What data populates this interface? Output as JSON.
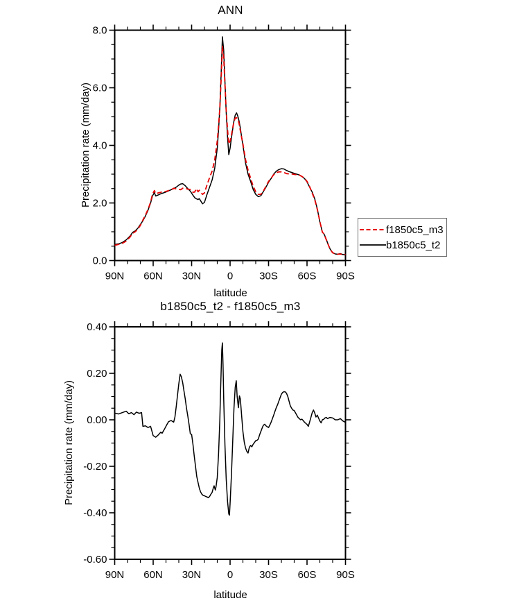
{
  "figure": {
    "background": "#ffffff",
    "frame_color": "#000000"
  },
  "legend": {
    "items": [
      {
        "label": "f1850c5_m3",
        "color": "#e60000",
        "style": "dashed"
      },
      {
        "label": "b1850c5_t2",
        "color": "#000000",
        "style": "solid"
      }
    ]
  },
  "chart_data": [
    {
      "type": "line",
      "title": "ANN",
      "xlabel": "latitude",
      "ylabel": "Precipitation rate (mm/day)",
      "xlim_lat": [
        90,
        -90
      ],
      "x_tick_lats": [
        90,
        60,
        30,
        0,
        -30,
        -60,
        -90
      ],
      "x_tick_labels": [
        "90N",
        "60N",
        "30N",
        "0",
        "30S",
        "60S",
        "90S"
      ],
      "x_minor_step_deg": 10,
      "ylim": [
        0.0,
        8.0
      ],
      "y_major_ticks": [
        0.0,
        2.0,
        4.0,
        6.0,
        8.0
      ],
      "y_tick_labels": [
        "0.0",
        "2.0",
        "4.0",
        "6.0",
        "8.0"
      ],
      "y_minor_step": 0.5,
      "grid": false,
      "legend_position": "outside-right",
      "lat": [
        90,
        87,
        84,
        81,
        78,
        76,
        74,
        72,
        70,
        68,
        66,
        64,
        62,
        60.5,
        59,
        58,
        56,
        54,
        52,
        50,
        48,
        46,
        44,
        42,
        40,
        38.5,
        37,
        35,
        33,
        31,
        29,
        27.5,
        26.5,
        25,
        24,
        23,
        21.5,
        20,
        18,
        16,
        14,
        12,
        10,
        9,
        8,
        7,
        6,
        5,
        4,
        3,
        2,
        1,
        0,
        -1,
        -2,
        -3,
        -4,
        -5,
        -6,
        -7,
        -8,
        -9,
        -10,
        -11,
        -12,
        -14,
        -16,
        -18,
        -20,
        -22,
        -24,
        -26,
        -28,
        -30,
        -32,
        -34,
        -36,
        -38,
        -40,
        -42,
        -44,
        -46,
        -48,
        -50,
        -52,
        -54,
        -56,
        -58,
        -60,
        -62,
        -64,
        -66,
        -68,
        -70,
        -72,
        -73,
        -74,
        -76,
        -78,
        -80,
        -82,
        -84,
        -86,
        -88,
        -90
      ],
      "series": [
        {
          "name": "f1850c5_m3",
          "color": "#e60000",
          "style": "dashed",
          "values": [
            0.53,
            0.56,
            0.6,
            0.68,
            0.82,
            0.95,
            1.0,
            1.09,
            1.22,
            1.41,
            1.58,
            1.78,
            2.03,
            2.31,
            2.43,
            2.32,
            2.35,
            2.37,
            2.4,
            2.4,
            2.43,
            2.46,
            2.51,
            2.49,
            2.47,
            2.46,
            2.51,
            2.51,
            2.48,
            2.47,
            2.37,
            2.38,
            2.5,
            2.39,
            2.44,
            2.39,
            2.3,
            2.35,
            2.63,
            2.88,
            3.11,
            3.49,
            4.15,
            4.7,
            5.3,
            6.3,
            7.44,
            7.05,
            6.1,
            5.2,
            4.55,
            4.05,
            4.15,
            4.35,
            4.6,
            4.82,
            4.95,
            4.96,
            4.92,
            4.77,
            4.51,
            4.28,
            4.05,
            3.78,
            3.52,
            3.14,
            2.86,
            2.58,
            2.39,
            2.3,
            2.3,
            2.42,
            2.58,
            2.75,
            2.86,
            2.98,
            3.05,
            3.08,
            3.08,
            3.06,
            3.02,
            3.01,
            3.01,
            2.99,
            2.98,
            2.97,
            2.92,
            2.86,
            2.75,
            2.57,
            2.35,
            2.12,
            1.78,
            1.36,
            0.98,
            0.94,
            0.84,
            0.61,
            0.39,
            0.27,
            0.23,
            0.22,
            0.23,
            0.21,
            0.21
          ]
        },
        {
          "name": "b1850c5_t2",
          "color": "#000000",
          "style": "solid",
          "values": [
            0.56,
            0.58,
            0.63,
            0.72,
            0.85,
            0.98,
            1.03,
            1.12,
            1.25,
            1.38,
            1.55,
            1.75,
            2.0,
            2.25,
            2.36,
            2.24,
            2.28,
            2.32,
            2.35,
            2.38,
            2.42,
            2.46,
            2.5,
            2.55,
            2.62,
            2.66,
            2.67,
            2.6,
            2.5,
            2.41,
            2.27,
            2.18,
            2.15,
            2.12,
            2.15,
            2.08,
            1.97,
            2.02,
            2.3,
            2.55,
            2.8,
            3.2,
            3.9,
            4.55,
            5.3,
            6.5,
            7.77,
            7.3,
            6.2,
            5.15,
            4.3,
            3.68,
            3.9,
            4.25,
            4.55,
            4.85,
            5.05,
            5.13,
            5.02,
            4.85,
            4.6,
            4.3,
            4.0,
            3.7,
            3.4,
            3.0,
            2.75,
            2.47,
            2.3,
            2.22,
            2.25,
            2.4,
            2.55,
            2.72,
            2.85,
            3.0,
            3.1,
            3.16,
            3.19,
            3.18,
            3.13,
            3.09,
            3.06,
            3.03,
            3.0,
            2.97,
            2.92,
            2.85,
            2.73,
            2.55,
            2.38,
            2.15,
            1.8,
            1.35,
            0.98,
            0.94,
            0.85,
            0.62,
            0.4,
            0.28,
            0.23,
            0.22,
            0.24,
            0.21,
            0.2
          ]
        }
      ]
    },
    {
      "type": "line",
      "title": "b1850c5_t2 - f1850c5_m3",
      "xlabel": "latitude",
      "ylabel": "Precipitation rate (mm/day)",
      "xlim_lat": [
        90,
        -90
      ],
      "x_tick_lats": [
        90,
        60,
        30,
        0,
        -30,
        -60,
        -90
      ],
      "x_tick_labels": [
        "90N",
        "60N",
        "30N",
        "0",
        "30S",
        "60S",
        "90S"
      ],
      "x_minor_step_deg": 10,
      "ylim": [
        -0.6,
        0.4
      ],
      "y_major_ticks": [
        0.4,
        0.2,
        0.0,
        -0.2,
        -0.4,
        -0.6
      ],
      "y_tick_labels": [
        "0.40",
        "0.20",
        "0.00",
        "-0.20",
        "-0.40",
        "-0.60"
      ],
      "y_minor_step": 0.05,
      "grid": false,
      "legend_position": "none",
      "lat": [
        90,
        87,
        84,
        81,
        79,
        77,
        75,
        73,
        71,
        69,
        68,
        66,
        64,
        62,
        60,
        58,
        56,
        54,
        53,
        51,
        49,
        48,
        46,
        44,
        43,
        42,
        41,
        40,
        39,
        38,
        37,
        36,
        35,
        34,
        33,
        32,
        31,
        30,
        29,
        28,
        27,
        26,
        25,
        24,
        23,
        22,
        21,
        20,
        19,
        18,
        17,
        16,
        15,
        14,
        13,
        12.5,
        11.5,
        11,
        10,
        9,
        8,
        7.5,
        7,
        6.5,
        6,
        5.5,
        5,
        4,
        3,
        2,
        1,
        0.5,
        0,
        -1,
        -2,
        -3,
        -4,
        -4.8,
        -5.5,
        -6.5,
        -7.3,
        -8,
        -9,
        -10,
        -11,
        -12,
        -13,
        -14,
        -15,
        -16,
        -17,
        -18,
        -19,
        -20,
        -21,
        -22,
        -23,
        -24,
        -25,
        -26,
        -27,
        -28,
        -29,
        -30,
        -31,
        -32,
        -33,
        -34,
        -35,
        -36,
        -37,
        -38,
        -39,
        -40,
        -41,
        -42,
        -43,
        -44,
        -45,
        -46,
        -47,
        -48,
        -49,
        -50,
        -51,
        -52,
        -53,
        -54,
        -55,
        -56,
        -57,
        -58,
        -59,
        -60,
        -61,
        -62,
        -63,
        -64,
        -65,
        -66,
        -67,
        -68,
        -69,
        -70,
        -71,
        -72,
        -73,
        -74,
        -75,
        -76,
        -77,
        -78,
        -80,
        -82,
        -84,
        -86,
        -88,
        -90
      ],
      "series": [
        {
          "name": "b1850c5_t2 - f1850c5_m3",
          "color": "#000000",
          "style": "solid",
          "values": [
            0.029,
            0.025,
            0.031,
            0.037,
            0.026,
            0.031,
            0.022,
            0.033,
            0.028,
            0.031,
            -0.028,
            -0.026,
            -0.033,
            -0.028,
            -0.068,
            -0.075,
            -0.065,
            -0.053,
            -0.058,
            -0.038,
            -0.018,
            -0.008,
            -0.003,
            -0.01,
            0.012,
            0.057,
            0.105,
            0.155,
            0.196,
            0.185,
            0.16,
            0.125,
            0.09,
            0.05,
            0.018,
            -0.02,
            -0.06,
            -0.063,
            -0.105,
            -0.154,
            -0.2,
            -0.244,
            -0.27,
            -0.294,
            -0.31,
            -0.32,
            -0.325,
            -0.327,
            -0.33,
            -0.332,
            -0.335,
            -0.33,
            -0.32,
            -0.312,
            -0.292,
            -0.284,
            -0.302,
            -0.29,
            -0.248,
            -0.144,
            0.0,
            0.108,
            0.21,
            0.3,
            0.331,
            0.24,
            0.09,
            -0.11,
            -0.255,
            -0.35,
            -0.405,
            -0.41,
            -0.36,
            -0.24,
            -0.1,
            0.05,
            0.14,
            0.168,
            0.1,
            0.052,
            0.103,
            0.09,
            0.02,
            -0.05,
            -0.095,
            -0.12,
            -0.135,
            -0.143,
            -0.118,
            -0.11,
            -0.116,
            -0.105,
            -0.098,
            -0.09,
            -0.088,
            -0.083,
            -0.065,
            -0.05,
            -0.035,
            -0.023,
            -0.019,
            -0.026,
            -0.03,
            -0.033,
            -0.022,
            -0.01,
            0.005,
            0.02,
            0.037,
            0.052,
            0.065,
            0.08,
            0.095,
            0.11,
            0.118,
            0.121,
            0.12,
            0.114,
            0.1,
            0.08,
            0.06,
            0.05,
            0.042,
            0.04,
            0.03,
            0.02,
            0.01,
            0.005,
            0.0,
            0.003,
            -0.003,
            -0.01,
            -0.015,
            -0.02,
            -0.028,
            -0.01,
            0.01,
            0.03,
            0.042,
            0.03,
            0.012,
            0.02,
            0.008,
            -0.005,
            -0.013,
            0.0,
            0.002,
            0.008,
            0.01,
            0.005,
            0.008,
            0.01,
            0.008,
            0.0,
            0.0,
            0.005,
            -0.005,
            -0.011
          ]
        }
      ]
    }
  ]
}
